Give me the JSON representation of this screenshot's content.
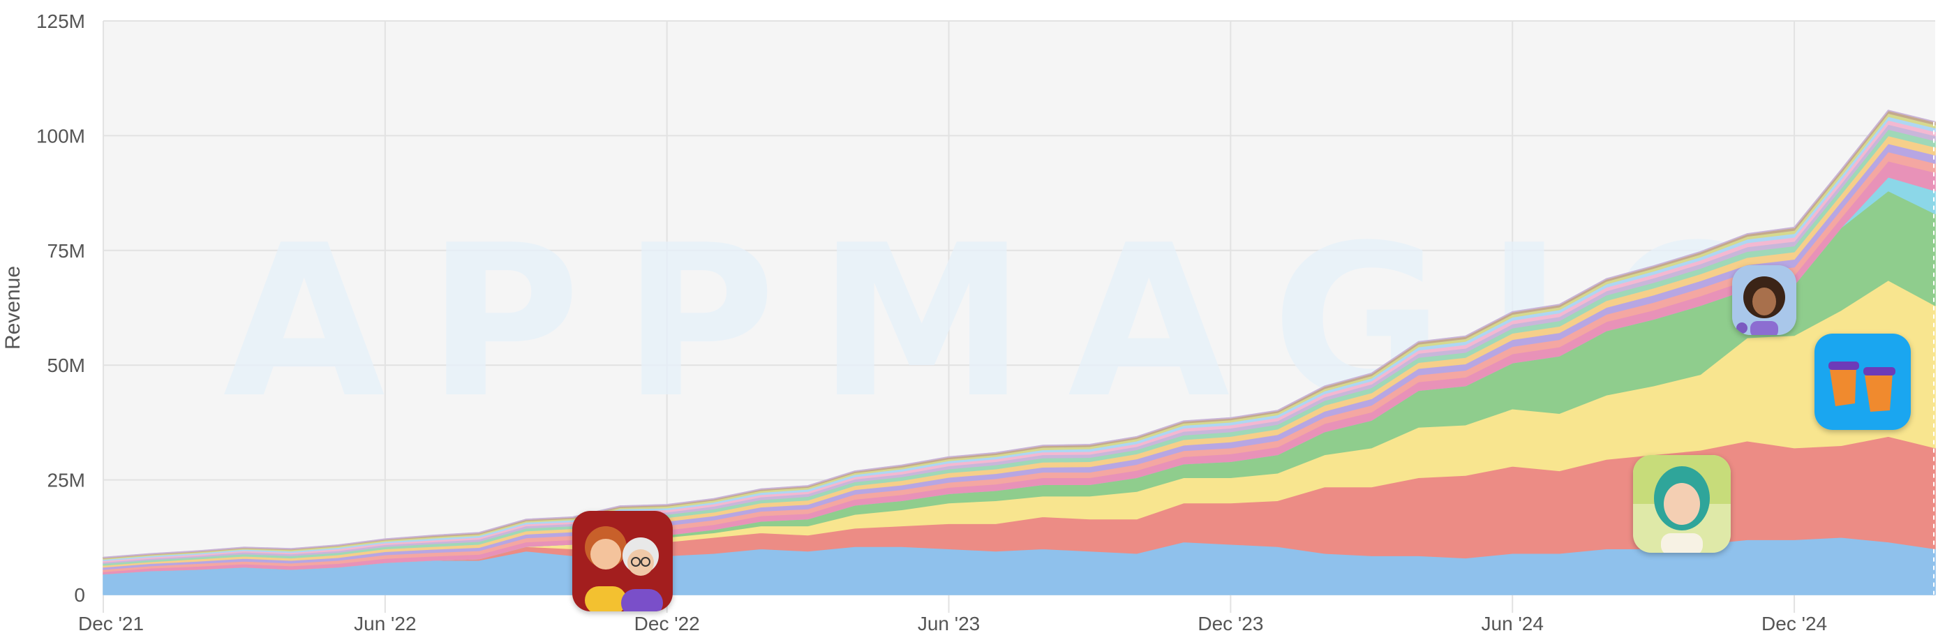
{
  "chart_data": {
    "type": "area",
    "stacked": true,
    "watermark": "APPMAGIC",
    "ylabel": "Revenue",
    "ylim": [
      0,
      125000000
    ],
    "y_ticks": [
      {
        "value": 0,
        "label": "0"
      },
      {
        "value": 25000000,
        "label": "25M"
      },
      {
        "value": 50000000,
        "label": "50M"
      },
      {
        "value": 75000000,
        "label": "75M"
      },
      {
        "value": 100000000,
        "label": "100M"
      },
      {
        "value": 125000000,
        "label": "125M"
      }
    ],
    "x_tick_labels": [
      "Dec '21",
      "Jun '22",
      "Dec '22",
      "Jun '23",
      "Dec '23",
      "Jun '24",
      "Dec '24"
    ],
    "x_start_month": "2021-12",
    "x": [
      "2021-12",
      "2022-01",
      "2022-02",
      "2022-03",
      "2022-04",
      "2022-05",
      "2022-06",
      "2022-07",
      "2022-08",
      "2022-09",
      "2022-10",
      "2022-11",
      "2022-12",
      "2023-01",
      "2023-02",
      "2023-03",
      "2023-04",
      "2023-05",
      "2023-06",
      "2023-07",
      "2023-08",
      "2023-09",
      "2023-10",
      "2023-11",
      "2023-12",
      "2024-01",
      "2024-02",
      "2024-03",
      "2024-04",
      "2024-05",
      "2024-06",
      "2024-07",
      "2024-08",
      "2024-09",
      "2024-10",
      "2024-11",
      "2024-12",
      "2025-01",
      "2025-02",
      "2025-03"
    ],
    "grid": true,
    "series": [
      {
        "color": "#8fc1ec",
        "values": [
          4.5,
          5.2,
          5.5,
          6,
          5.5,
          6,
          7,
          7.5,
          7.5,
          9.5,
          8.5,
          9,
          8.5,
          9,
          10,
          9.5,
          10.5,
          10.5,
          10,
          9.5,
          10,
          9.5,
          9,
          11.5,
          11,
          10.5,
          9,
          8.5,
          8.5,
          8,
          9,
          9,
          10,
          10,
          11,
          12,
          12,
          12.5,
          11.5,
          10
        ]
      },
      {
        "color": "#ec8c85",
        "values": [
          0,
          0,
          0,
          0,
          0,
          0,
          0,
          0,
          0.3,
          1,
          1.5,
          2.5,
          3,
          3.5,
          3.5,
          3.5,
          4,
          4.5,
          5.5,
          6,
          7,
          7,
          7.5,
          8.5,
          9,
          10,
          14.5,
          15,
          17,
          18,
          19,
          18,
          19.5,
          20.5,
          20.5,
          21.5,
          20,
          20,
          23,
          22
        ]
      },
      {
        "color": "#f8e58f",
        "values": [
          0,
          0,
          0,
          0,
          0,
          0,
          0,
          0,
          0,
          0,
          1,
          1,
          1,
          1,
          1.5,
          2,
          3,
          3.5,
          4.5,
          5,
          4.5,
          5,
          6,
          5.5,
          5.5,
          6,
          7,
          8.5,
          11,
          11,
          12.5,
          12.5,
          14,
          15,
          16.5,
          22.5,
          24.5,
          29.5,
          34,
          31
        ]
      },
      {
        "color": "#8fcd8d",
        "values": [
          0,
          0,
          0,
          0,
          0,
          0,
          0,
          0,
          0,
          0,
          0,
          0.5,
          0.5,
          0.7,
          1,
          1.5,
          2,
          2,
          2,
          2.2,
          2.5,
          2.5,
          3,
          3,
          3.5,
          4,
          5,
          6,
          8,
          8.5,
          10,
          12.5,
          14,
          14.5,
          15,
          10.5,
          11,
          18,
          19.5,
          20
        ]
      },
      {
        "color": "#8cd7e8",
        "values": [
          0,
          0,
          0,
          0,
          0,
          0,
          0,
          0,
          0,
          0,
          0,
          0,
          0,
          0,
          0,
          0,
          0,
          0,
          0,
          0,
          0,
          0,
          0,
          0,
          0,
          0,
          0,
          0,
          0,
          0,
          0,
          0,
          0,
          0,
          0,
          0,
          0,
          0,
          3,
          5
        ]
      },
      {
        "color": "#e892b8",
        "values": [
          0.5,
          0.6,
          0.7,
          0.7,
          0.8,
          0.8,
          0.9,
          0.9,
          1,
          1,
          1,
          1,
          1.1,
          1.1,
          1.2,
          1.2,
          1.3,
          1.3,
          1.4,
          1.4,
          1.5,
          1.5,
          1.6,
          1.6,
          1.7,
          1.7,
          1.8,
          1.8,
          1.9,
          1.9,
          2,
          2,
          2,
          2,
          2.1,
          2.1,
          2.1,
          2.2,
          3.5,
          4
        ]
      },
      {
        "color": "#f4a7a2",
        "values": [
          0.5,
          0.5,
          0.6,
          0.6,
          0.6,
          0.7,
          0.8,
          0.8,
          0.8,
          0.9,
          0.9,
          1,
          1,
          1,
          1,
          1,
          1.1,
          1.1,
          1.1,
          1.2,
          1.2,
          1.2,
          1.3,
          1.3,
          1.3,
          1.4,
          1.4,
          1.5,
          1.5,
          1.5,
          1.6,
          1.6,
          1.6,
          1.7,
          1.7,
          1.7,
          1.8,
          1.8,
          2,
          2
        ]
      },
      {
        "color": "#b7a6e3",
        "values": [
          0.5,
          0.5,
          0.5,
          0.6,
          0.6,
          0.6,
          0.7,
          0.7,
          0.7,
          0.8,
          0.8,
          0.8,
          0.9,
          0.9,
          0.9,
          1,
          1,
          1,
          1.1,
          1.1,
          1.1,
          1.2,
          1.2,
          1.2,
          1.3,
          1.3,
          1.3,
          1.4,
          1.4,
          1.4,
          1.5,
          1.5,
          1.5,
          1.6,
          1.6,
          1.6,
          1.7,
          1.7,
          1.8,
          1.8
        ]
      },
      {
        "color": "#f6cf8a",
        "values": [
          0.4,
          0.4,
          0.5,
          0.5,
          0.5,
          0.6,
          0.6,
          0.6,
          0.7,
          0.7,
          0.7,
          0.8,
          0.8,
          0.8,
          0.9,
          0.9,
          0.9,
          1,
          1,
          1,
          1.1,
          1.1,
          1.1,
          1.2,
          1.2,
          1.2,
          1.3,
          1.3,
          1.3,
          1.4,
          1.4,
          1.4,
          1.5,
          1.5,
          1.5,
          1.6,
          1.6,
          1.6,
          1.7,
          1.7
        ]
      },
      {
        "color": "#9fd8b8",
        "values": [
          0.4,
          0.4,
          0.4,
          0.5,
          0.5,
          0.5,
          0.5,
          0.6,
          0.6,
          0.6,
          0.6,
          0.7,
          0.7,
          0.7,
          0.7,
          0.8,
          0.8,
          0.8,
          0.8,
          0.9,
          0.9,
          0.9,
          0.9,
          1,
          1,
          1,
          1,
          1.1,
          1.1,
          1.1,
          1.1,
          1.2,
          1.2,
          1.2,
          1.2,
          1.3,
          1.3,
          1.3,
          1.4,
          1.4
        ]
      },
      {
        "color": "#c9b6da",
        "values": [
          0.3,
          0.3,
          0.3,
          0.4,
          0.4,
          0.4,
          0.4,
          0.4,
          0.5,
          0.5,
          0.5,
          0.5,
          0.5,
          0.6,
          0.6,
          0.6,
          0.6,
          0.6,
          0.7,
          0.7,
          0.7,
          0.7,
          0.7,
          0.8,
          0.8,
          0.8,
          0.8,
          0.8,
          0.9,
          0.9,
          0.9,
          0.9,
          0.9,
          1,
          1,
          1,
          1,
          1,
          1.1,
          1.1
        ]
      },
      {
        "color": "#f3b9d2",
        "values": [
          0.3,
          0.3,
          0.3,
          0.3,
          0.3,
          0.4,
          0.4,
          0.4,
          0.4,
          0.4,
          0.4,
          0.5,
          0.5,
          0.5,
          0.5,
          0.5,
          0.5,
          0.6,
          0.6,
          0.6,
          0.6,
          0.6,
          0.6,
          0.7,
          0.7,
          0.7,
          0.7,
          0.7,
          0.7,
          0.8,
          0.8,
          0.8,
          0.8,
          0.8,
          0.8,
          0.9,
          0.9,
          0.9,
          0.9,
          0.9
        ]
      },
      {
        "color": "#aed7f3",
        "values": [
          0.3,
          0.3,
          0.3,
          0.3,
          0.3,
          0.3,
          0.3,
          0.4,
          0.4,
          0.4,
          0.4,
          0.4,
          0.4,
          0.4,
          0.5,
          0.5,
          0.5,
          0.5,
          0.5,
          0.5,
          0.5,
          0.6,
          0.6,
          0.6,
          0.6,
          0.6,
          0.6,
          0.6,
          0.7,
          0.7,
          0.7,
          0.7,
          0.7,
          0.7,
          0.7,
          0.8,
          0.8,
          0.8,
          0.8,
          0.8
        ]
      },
      {
        "color": "#d6d98e",
        "values": [
          0.2,
          0.2,
          0.2,
          0.2,
          0.3,
          0.3,
          0.3,
          0.3,
          0.3,
          0.3,
          0.3,
          0.3,
          0.4,
          0.4,
          0.4,
          0.4,
          0.4,
          0.4,
          0.4,
          0.4,
          0.5,
          0.5,
          0.5,
          0.5,
          0.5,
          0.5,
          0.5,
          0.5,
          0.6,
          0.6,
          0.6,
          0.6,
          0.6,
          0.6,
          0.6,
          0.6,
          0.7,
          0.7,
          0.7,
          0.7
        ]
      },
      {
        "color": "#c4a98c",
        "values": [
          0.2,
          0.2,
          0.2,
          0.2,
          0.2,
          0.2,
          0.2,
          0.3,
          0.3,
          0.3,
          0.3,
          0.3,
          0.3,
          0.3,
          0.3,
          0.3,
          0.3,
          0.4,
          0.4,
          0.4,
          0.4,
          0.4,
          0.4,
          0.4,
          0.4,
          0.4,
          0.5,
          0.5,
          0.5,
          0.5,
          0.5,
          0.5,
          0.5,
          0.5,
          0.5,
          0.5,
          0.6,
          0.6,
          0.6,
          0.6
        ]
      }
    ],
    "highlight_icons": [
      {
        "name": "app-icon-two-women",
        "x_index": 10,
        "icon": "two-women-portrait-icon"
      },
      {
        "name": "app-icon-green-hair",
        "x_index": 34,
        "icon": "green-hair-girl-icon"
      },
      {
        "name": "app-icon-curly-woman",
        "x_index": 36,
        "icon": "curly-woman-icon"
      },
      {
        "name": "app-icon-coffee-cups",
        "x_index": 38,
        "icon": "coffee-cups-icon"
      }
    ]
  }
}
